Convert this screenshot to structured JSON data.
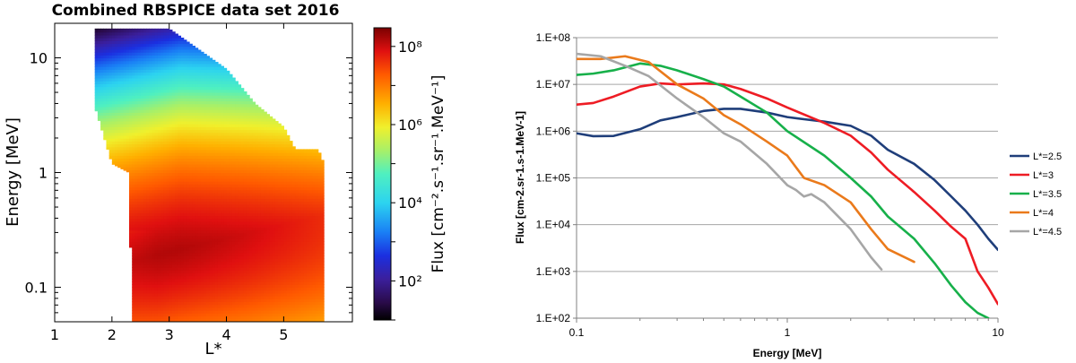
{
  "chart_data": [
    {
      "type": "heatmap",
      "title": "Combined RBSPICE data set  2016",
      "xlabel": "L*",
      "ylabel": "Energy [MeV]",
      "xlim": [
        1,
        6.2
      ],
      "ylim": [
        0.05,
        20
      ],
      "y_scale": "log",
      "x_ticks": [
        "1",
        "2",
        "3",
        "4",
        "5"
      ],
      "y_ticks": [
        "0.1",
        "1",
        "10"
      ],
      "colorbar": {
        "label": "Flux [cm⁻².s⁻¹.sr⁻¹.MeV⁻¹]",
        "scale": "log",
        "range": [
          10.0,
          300000000.0
        ],
        "ticks": [
          "10²",
          "10⁴",
          "10⁶",
          "10⁸"
        ],
        "colormap": "jet-like"
      },
      "coverage": {
        "lstar_range": [
          1.7,
          5.7
        ],
        "upper_energy_edge": [
          [
            1.7,
            18
          ],
          [
            3.0,
            18
          ],
          [
            3.5,
            12
          ],
          [
            4.0,
            8
          ],
          [
            4.5,
            4
          ],
          [
            5.0,
            2.5
          ],
          [
            5.2,
            1.6
          ],
          [
            5.6,
            1.6
          ],
          [
            5.7,
            1.2
          ]
        ],
        "lower_energy_edge": [
          [
            1.7,
            3.8
          ],
          [
            2.0,
            1.2
          ],
          [
            2.3,
            1.0
          ],
          [
            2.35,
            0.05
          ],
          [
            5.6,
            0.05
          ]
        ]
      }
    },
    {
      "type": "line",
      "xlabel": "Energy [MeV]",
      "ylabel": "Flux [cm-2.sr-1.s-1.MeV-1]",
      "x_scale": "log",
      "y_scale": "log",
      "xlim": [
        0.1,
        10
      ],
      "ylim": [
        100,
        100000000
      ],
      "x_ticks": [
        "0.1",
        "1",
        "10"
      ],
      "y_ticks": [
        "1.E+02",
        "1.E+03",
        "1.E+04",
        "1.E+05",
        "1.E+06",
        "1.E+07",
        "1.E+08"
      ],
      "grid": "horizontal",
      "legend": "right",
      "series": [
        {
          "name": "L*=2.5",
          "color": "#1f3e7a",
          "points": [
            [
              0.1,
              900000
            ],
            [
              0.12,
              780000
            ],
            [
              0.15,
              790000
            ],
            [
              0.2,
              1100000
            ],
            [
              0.25,
              1700000
            ],
            [
              0.3,
              2000000
            ],
            [
              0.4,
              2700000
            ],
            [
              0.5,
              3000000
            ],
            [
              0.6,
              3000000
            ],
            [
              0.8,
              2500000
            ],
            [
              1.0,
              2000000
            ],
            [
              1.2,
              1800000
            ],
            [
              1.5,
              1600000
            ],
            [
              2.0,
              1300000
            ],
            [
              2.5,
              800000
            ],
            [
              3.0,
              400000
            ],
            [
              4.0,
              200000
            ],
            [
              5.0,
              90000
            ],
            [
              6.0,
              40000
            ],
            [
              7.0,
              20000
            ],
            [
              8.0,
              10000
            ],
            [
              9.0,
              5000
            ],
            [
              10.0,
              2900
            ]
          ]
        },
        {
          "name": "L*=3",
          "color": "#ee1c24",
          "points": [
            [
              0.1,
              3700000
            ],
            [
              0.12,
              4000000
            ],
            [
              0.15,
              5500000
            ],
            [
              0.2,
              9000000
            ],
            [
              0.25,
              10500000
            ],
            [
              0.3,
              10000000
            ],
            [
              0.4,
              10500000
            ],
            [
              0.5,
              10000000
            ],
            [
              0.6,
              8000000
            ],
            [
              0.8,
              5000000
            ],
            [
              1.0,
              3200000
            ],
            [
              1.5,
              1500000
            ],
            [
              2.0,
              800000
            ],
            [
              2.5,
              350000
            ],
            [
              3.0,
              150000
            ],
            [
              4.0,
              50000
            ],
            [
              5.0,
              20000
            ],
            [
              6.0,
              9000
            ],
            [
              7.0,
              5000
            ],
            [
              8.0,
              1000
            ],
            [
              9.0,
              450
            ],
            [
              10.0,
              200
            ]
          ]
        },
        {
          "name": "L*=3.5",
          "color": "#17b04a",
          "points": [
            [
              0.1,
              16000000
            ],
            [
              0.12,
              17000000
            ],
            [
              0.15,
              20000000
            ],
            [
              0.2,
              28000000
            ],
            [
              0.25,
              25000000
            ],
            [
              0.3,
              20000000
            ],
            [
              0.4,
              13000000
            ],
            [
              0.5,
              9000000
            ],
            [
              0.6,
              5500000
            ],
            [
              0.8,
              2500000
            ],
            [
              1.0,
              1000000
            ],
            [
              1.5,
              300000
            ],
            [
              2.0,
              100000
            ],
            [
              2.5,
              40000
            ],
            [
              3.0,
              15000
            ],
            [
              4.0,
              5000
            ],
            [
              5.0,
              1500
            ],
            [
              6.0,
              500
            ],
            [
              7.0,
              220
            ],
            [
              8.0,
              130
            ],
            [
              9.0,
              100
            ]
          ]
        },
        {
          "name": "L*=4",
          "color": "#ea7a1b",
          "points": [
            [
              0.1,
              35000000
            ],
            [
              0.13,
              35000000
            ],
            [
              0.17,
              40000000
            ],
            [
              0.22,
              30000000
            ],
            [
              0.3,
              10000000
            ],
            [
              0.4,
              5000000
            ],
            [
              0.5,
              2200000
            ],
            [
              0.6,
              1400000
            ],
            [
              0.8,
              600000
            ],
            [
              1.0,
              300000
            ],
            [
              1.2,
              100000
            ],
            [
              1.5,
              70000
            ],
            [
              2.0,
              30000
            ],
            [
              2.5,
              8000
            ],
            [
              3.0,
              3000
            ],
            [
              4.0,
              1600
            ]
          ]
        },
        {
          "name": "L*=4.5",
          "color": "#a6a6a6",
          "points": [
            [
              0.1,
              45000000
            ],
            [
              0.13,
              40000000
            ],
            [
              0.17,
              25000000
            ],
            [
              0.22,
              15000000
            ],
            [
              0.3,
              5000000
            ],
            [
              0.4,
              2000000
            ],
            [
              0.5,
              900000
            ],
            [
              0.6,
              600000
            ],
            [
              0.8,
              200000
            ],
            [
              1.0,
              70000
            ],
            [
              1.1,
              55000
            ],
            [
              1.2,
              40000
            ],
            [
              1.3,
              45000
            ],
            [
              1.5,
              30000
            ],
            [
              2.0,
              8000
            ],
            [
              2.5,
              2000
            ],
            [
              2.8,
              1100
            ]
          ]
        }
      ]
    }
  ]
}
